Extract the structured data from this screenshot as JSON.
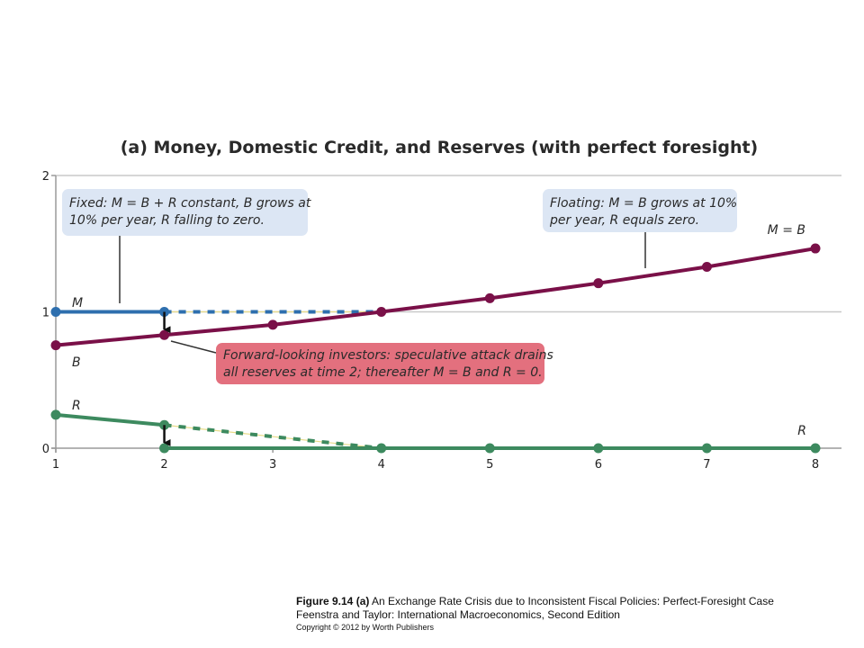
{
  "chart_data": {
    "type": "line",
    "title": "(a) Money, Domestic Credit, and Reserves (with perfect foresight)",
    "x_ticks": [
      "1",
      "2",
      "3",
      "4",
      "5",
      "6",
      "7",
      "8"
    ],
    "y_ticks": [
      "0",
      "1",
      "2"
    ],
    "xlim": [
      1,
      8
    ],
    "ylim": [
      0,
      2
    ],
    "grid": "horizontal",
    "series": [
      {
        "name": "M",
        "color": "#2e6fae",
        "segments": [
          {
            "style": "solid",
            "x": [
              1,
              2
            ],
            "y": [
              1.0,
              1.0
            ]
          },
          {
            "style": "dashed",
            "x": [
              2,
              4
            ],
            "y": [
              1.0,
              1.0
            ]
          }
        ],
        "markers": {
          "x": [
            1,
            2
          ],
          "y": [
            1.0,
            1.0
          ]
        }
      },
      {
        "name": "B",
        "label_right": "M = B",
        "color": "#7a1048",
        "segments": [
          {
            "style": "solid",
            "x": [
              1,
              2,
              3,
              4,
              5,
              6,
              7,
              8
            ],
            "y": [
              0.755,
              0.83,
              0.905,
              1.0,
              1.1,
              1.21,
              1.33,
              1.465
            ]
          }
        ],
        "markers": {
          "x": [
            1,
            2,
            3,
            4,
            5,
            6,
            7,
            8
          ],
          "y": [
            0.755,
            0.83,
            0.905,
            1.0,
            1.1,
            1.21,
            1.33,
            1.465
          ]
        }
      },
      {
        "name": "R",
        "label_right": "R",
        "color": "#3d8a5f",
        "segments": [
          {
            "style": "solid",
            "x": [
              1,
              2
            ],
            "y": [
              0.245,
              0.17
            ]
          },
          {
            "style": "dashed",
            "x": [
              2,
              4
            ],
            "y": [
              0.17,
              0.0
            ]
          },
          {
            "style": "solid",
            "x": [
              2,
              3,
              4,
              5,
              6,
              7,
              8
            ],
            "y": [
              0,
              0,
              0,
              0,
              0,
              0,
              0
            ]
          }
        ],
        "markers": {
          "x": [
            1,
            2,
            2,
            4,
            5,
            6,
            7,
            8
          ],
          "y": [
            0.245,
            0.17,
            0.0,
            0.0,
            0.0,
            0.0,
            0.0,
            0.0
          ]
        }
      }
    ],
    "annotations": [
      {
        "text": [
          "Fixed: M = B + R constant, B grows at",
          "10% per year, R falling to zero."
        ],
        "fill": "#dce6f4"
      },
      {
        "text": [
          "Floating: M = B grows at 10%",
          "per year, R equals zero."
        ],
        "fill": "#dce6f4"
      },
      {
        "text": [
          "Forward-looking investors: speculative attack drains",
          "all reserves at time 2; thereafter M = B and R = 0."
        ],
        "fill": "#e3707e"
      }
    ],
    "arrows": [
      {
        "from": [
          2,
          1.0
        ],
        "to": [
          2,
          0.83
        ]
      },
      {
        "from": [
          2,
          0.17
        ],
        "to": [
          2,
          0.0
        ]
      }
    ]
  },
  "caption": {
    "fig_label": "Figure 9.14 (a)",
    "fig_text": " An Exchange Rate Crisis due to Inconsistent Fiscal Policies: Perfect-Foresight Case",
    "line2": "Feenstra and Taylor: International Macroeconomics, Second Edition",
    "line3": "Copyright © 2012 by Worth Publishers"
  }
}
